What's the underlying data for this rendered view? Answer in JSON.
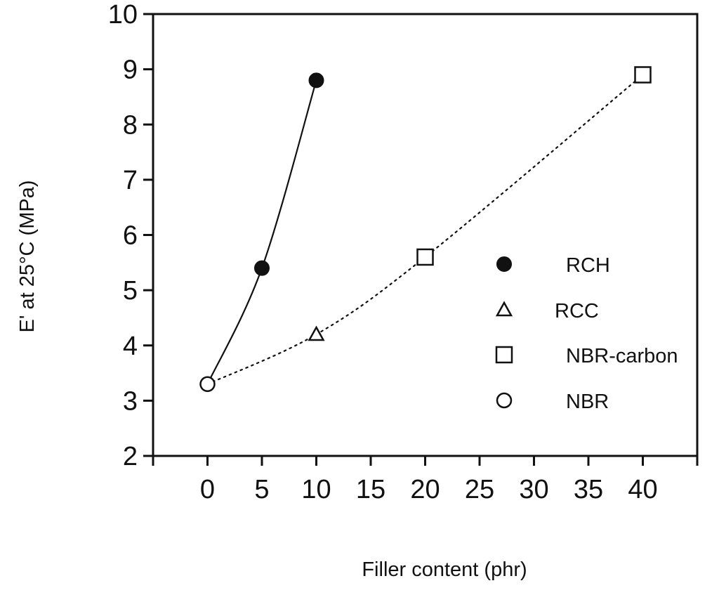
{
  "chart_data": {
    "type": "scatter",
    "title": "",
    "xlabel": "Filler content (phr)",
    "ylabel": "E' at 25°C  (MPa)",
    "xlim": [
      -5,
      45
    ],
    "ylim": [
      2,
      10
    ],
    "x_ticks": [
      "0",
      "5",
      "10",
      "15",
      "20",
      "25",
      "30",
      "35",
      "40"
    ],
    "y_ticks": [
      "2",
      "3",
      "4",
      "5",
      "6",
      "7",
      "8",
      "9",
      "10"
    ],
    "grid": false,
    "legend_position": "right",
    "series": [
      {
        "name": "RCH",
        "marker": "filled-circle",
        "points": [
          {
            "x": 5,
            "y": 5.4
          },
          {
            "x": 10,
            "y": 8.8
          }
        ]
      },
      {
        "name": "RCC",
        "marker": "open-triangle",
        "points": [
          {
            "x": 10,
            "y": 4.2
          }
        ]
      },
      {
        "name": "NBR-carbon",
        "marker": "open-square",
        "points": [
          {
            "x": 20,
            "y": 5.6
          },
          {
            "x": 40,
            "y": 8.9
          }
        ]
      },
      {
        "name": "NBR",
        "marker": "open-circle",
        "points": [
          {
            "x": 0,
            "y": 3.3
          }
        ]
      }
    ],
    "trend_lines": [
      {
        "style": "solid",
        "points": [
          {
            "x": 0,
            "y": 3.3
          },
          {
            "x": 5,
            "y": 5.4
          },
          {
            "x": 10,
            "y": 8.8
          }
        ]
      },
      {
        "style": "dotted",
        "points": [
          {
            "x": 0,
            "y": 3.3
          },
          {
            "x": 10,
            "y": 4.2
          },
          {
            "x": 20,
            "y": 5.6
          },
          {
            "x": 40,
            "y": 8.9
          }
        ]
      }
    ],
    "colors": {
      "ink": "#111111",
      "background": "#ffffff"
    }
  }
}
